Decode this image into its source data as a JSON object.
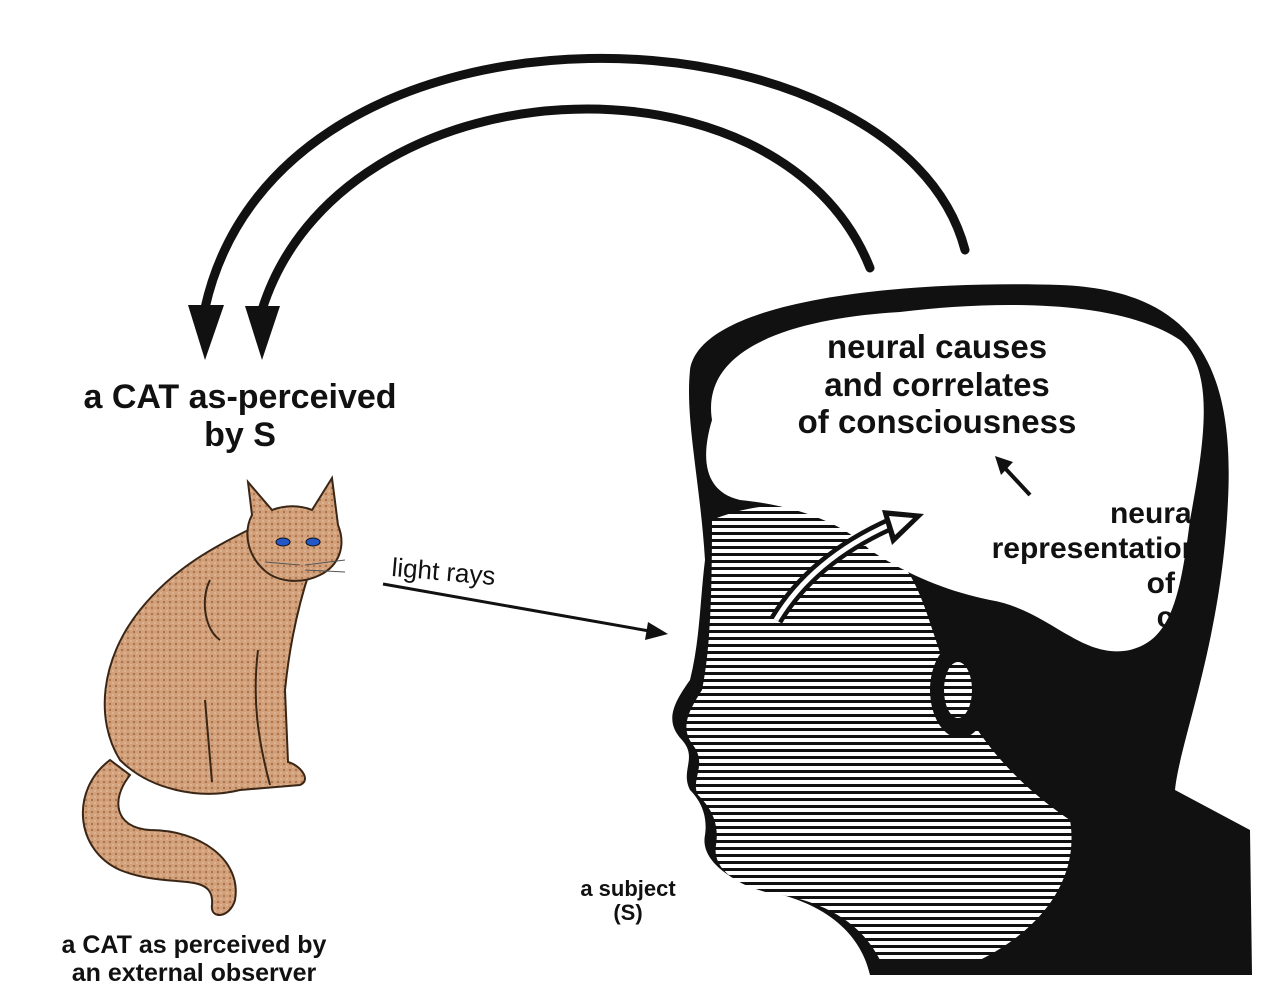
{
  "labels": {
    "cat_as_perceived_by_s": [
      "a CAT as-perceived",
      "by S"
    ],
    "cat_external_observer": [
      "a CAT as perceived by",
      "an external observer"
    ],
    "light_rays": "light rays",
    "subject": [
      "a subject",
      "(S)"
    ],
    "neural_causes": [
      "neural causes",
      "and correlates",
      "of consciousness"
    ],
    "neural_representation": [
      "neural",
      "representation",
      "of a",
      "cat"
    ]
  },
  "colors": {
    "ink": "#111111",
    "cat_fur": "#c9956a",
    "cat_eyes": "#2457c8",
    "background": "#ffffff"
  },
  "icons": [
    "cat-figure",
    "head-silhouette",
    "arrow-icon"
  ]
}
